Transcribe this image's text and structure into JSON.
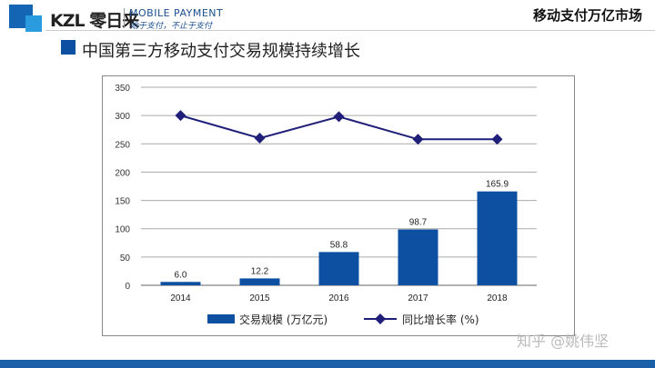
{
  "header": {
    "brand": "KZL 零日来",
    "tagline_en": "MOBILE PAYMENT",
    "tagline_cn": "始于支付，不止于支付",
    "right_title": "移动支付万亿市场"
  },
  "slide_title": "中国第三方移动支付交易规模持续增长",
  "watermark": "知乎 @姚伟坚",
  "colors": {
    "bar": "#0d4fa0",
    "line": "#1f1f7a",
    "brand": "#1565b5"
  },
  "chart_data": {
    "type": "bar+line",
    "categories": [
      "2014",
      "2015",
      "2016",
      "2017",
      "2018"
    ],
    "series": [
      {
        "name": "交易规模 (万亿元)",
        "type": "bar",
        "values": [
          6.0,
          12.2,
          58.8,
          98.7,
          165.9
        ],
        "labels": [
          "6.0",
          "12.2",
          "58.8",
          "98.7",
          "165.9"
        ]
      },
      {
        "name": "同比增长率 (%)",
        "type": "line",
        "values": [
          300,
          260,
          298,
          258,
          258
        ]
      }
    ],
    "ylim": [
      0,
      350
    ],
    "yticks": [
      "0",
      "50",
      "100",
      "150",
      "200",
      "250",
      "300",
      "350"
    ],
    "grid": true,
    "legend": "bottom"
  }
}
